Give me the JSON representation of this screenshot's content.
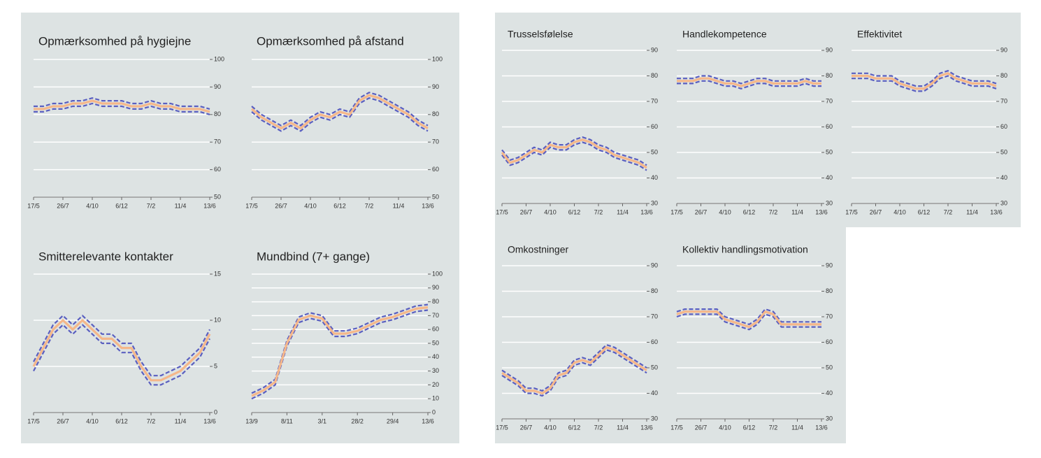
{
  "chart_data": [
    {
      "type": "line",
      "title": "Opmærksomhed på hygiejne",
      "categories": [
        "17/5",
        null,
        null,
        "26/7",
        null,
        null,
        "4/10",
        null,
        null,
        "6/12",
        null,
        null,
        "7/2",
        null,
        null,
        "11/4",
        null,
        null,
        "13/6"
      ],
      "series": [
        {
          "color": "#5a5fc0",
          "dash": true,
          "values": [
            83,
            83,
            84,
            84,
            85,
            85,
            86,
            85,
            85,
            85,
            84,
            84,
            85,
            84,
            84,
            83,
            83,
            83,
            82
          ]
        },
        {
          "color": "#5a5fc0",
          "dash": true,
          "values": [
            81,
            81,
            82,
            82,
            83,
            83,
            84,
            83,
            83,
            83,
            82,
            82,
            83,
            82,
            82,
            81,
            81,
            81,
            80
          ]
        },
        {
          "color": "#f5b78a",
          "values": [
            82,
            82,
            83,
            83,
            84,
            84,
            85,
            84,
            84,
            84,
            83,
            83,
            84,
            83,
            83,
            82,
            82,
            82,
            81
          ]
        }
      ],
      "ylim": [
        50,
        100
      ],
      "yticks": [
        50,
        60,
        70,
        80,
        90,
        100
      ],
      "grid": true
    },
    {
      "type": "line",
      "title": "Opmærksomhed på afstand",
      "categories": [
        "17/5",
        null,
        null,
        "26/7",
        null,
        null,
        "4/10",
        null,
        null,
        "6/12",
        null,
        null,
        "7/2",
        null,
        null,
        "11/4",
        null,
        null,
        "13/6"
      ],
      "series": [
        {
          "color": "#5a5fc0",
          "dash": true,
          "values": [
            83,
            80,
            78,
            76,
            78,
            76,
            79,
            81,
            80,
            82,
            81,
            86,
            88,
            87,
            85,
            83,
            81,
            78,
            76
          ]
        },
        {
          "color": "#5a5fc0",
          "dash": true,
          "values": [
            81,
            78,
            76,
            74,
            76,
            74,
            77,
            79,
            78,
            80,
            79,
            84,
            86,
            85,
            83,
            81,
            79,
            76,
            74
          ]
        },
        {
          "color": "#f5b78a",
          "values": [
            82,
            79,
            77,
            75,
            77,
            75,
            78,
            80,
            79,
            81,
            80,
            85,
            87,
            86,
            84,
            82,
            80,
            77,
            75
          ]
        }
      ],
      "ylim": [
        50,
        100
      ],
      "yticks": [
        50,
        60,
        70,
        80,
        90,
        100
      ],
      "grid": true
    },
    {
      "type": "line",
      "title": "Smitterelevante kontakter",
      "categories": [
        "17/5",
        null,
        null,
        "26/7",
        null,
        null,
        "4/10",
        null,
        null,
        "6/12",
        null,
        null,
        "7/2",
        null,
        null,
        "11/4",
        null,
        null,
        "13/6"
      ],
      "series": [
        {
          "color": "#5a5fc0",
          "dash": true,
          "values": [
            5.5,
            7.5,
            9.5,
            10.5,
            9.5,
            10.5,
            9.5,
            8.5,
            8.5,
            7.5,
            7.5,
            5.5,
            4,
            4,
            4.5,
            5,
            6,
            7,
            9
          ]
        },
        {
          "color": "#5a5fc0",
          "dash": true,
          "values": [
            4.5,
            6.5,
            8.5,
            9.5,
            8.5,
            9.5,
            8.5,
            7.5,
            7.5,
            6.5,
            6.5,
            4.5,
            3,
            3,
            3.5,
            4,
            5,
            6,
            8
          ]
        },
        {
          "color": "#f5b78a",
          "values": [
            5,
            7,
            9,
            10,
            9,
            10,
            9,
            8,
            8,
            7,
            7,
            5,
            3.5,
            3.5,
            4,
            4.5,
            5.5,
            6.5,
            8.5
          ]
        }
      ],
      "ylim": [
        0,
        15
      ],
      "yticks": [
        0,
        5,
        10,
        15
      ],
      "grid": true
    },
    {
      "type": "line",
      "title": "Mundbind (7+ gange)",
      "categories": [
        "13/9",
        null,
        null,
        "8/11",
        null,
        null,
        "3/1",
        null,
        null,
        "28/2",
        null,
        null,
        "29/4",
        null,
        null,
        "13/6"
      ],
      "series": [
        {
          "color": "#5a5fc0",
          "dash": true,
          "values": [
            14,
            18,
            24,
            52,
            69,
            72,
            70,
            59,
            59,
            61,
            65,
            69,
            71,
            74,
            77,
            78
          ]
        },
        {
          "color": "#5a5fc0",
          "dash": true,
          "values": [
            10,
            14,
            20,
            48,
            65,
            68,
            66,
            55,
            55,
            57,
            61,
            65,
            67,
            70,
            73,
            74
          ]
        },
        {
          "color": "#f5b78a",
          "values": [
            12,
            16,
            22,
            50,
            67,
            70,
            68,
            57,
            57,
            59,
            63,
            67,
            69,
            72,
            75,
            76
          ]
        }
      ],
      "ylim": [
        0,
        100
      ],
      "yticks": [
        0,
        10,
        20,
        30,
        40,
        50,
        60,
        70,
        80,
        90,
        100
      ],
      "grid": true
    },
    {
      "type": "line",
      "title": "Trusselsfølelse",
      "categories": [
        "17/5",
        null,
        null,
        "26/7",
        null,
        null,
        "4/10",
        null,
        null,
        "6/12",
        null,
        null,
        "7/2",
        null,
        null,
        "11/4",
        null,
        null,
        "13/6"
      ],
      "series": [
        {
          "color": "#5a5fc0",
          "dash": true,
          "values": [
            51,
            47,
            48,
            50,
            52,
            51,
            54,
            53,
            53,
            55,
            56,
            55,
            53,
            52,
            50,
            49,
            48,
            47,
            45
          ]
        },
        {
          "color": "#5a5fc0",
          "dash": true,
          "values": [
            49,
            45,
            46,
            48,
            50,
            49,
            52,
            51,
            51,
            53,
            54,
            53,
            51,
            50,
            48,
            47,
            46,
            45,
            43
          ]
        },
        {
          "color": "#f5b78a",
          "values": [
            50,
            46,
            47,
            49,
            51,
            50,
            53,
            52,
            52,
            54,
            55,
            54,
            52,
            51,
            49,
            48,
            47,
            46,
            44
          ]
        }
      ],
      "ylim": [
        30,
        90
      ],
      "yticks": [
        30,
        40,
        50,
        60,
        70,
        80,
        90
      ],
      "grid": true
    },
    {
      "type": "line",
      "title": "Handlekompetence",
      "categories": [
        "17/5",
        null,
        null,
        "26/7",
        null,
        null,
        "4/10",
        null,
        null,
        "6/12",
        null,
        null,
        "7/2",
        null,
        null,
        "11/4",
        null,
        null,
        "13/6"
      ],
      "series": [
        {
          "color": "#5a5fc0",
          "dash": true,
          "values": [
            79,
            79,
            79,
            80,
            80,
            79,
            78,
            78,
            77,
            78,
            79,
            79,
            78,
            78,
            78,
            78,
            79,
            78,
            78
          ]
        },
        {
          "color": "#5a5fc0",
          "dash": true,
          "values": [
            77,
            77,
            77,
            78,
            78,
            77,
            76,
            76,
            75,
            76,
            77,
            77,
            76,
            76,
            76,
            76,
            77,
            76,
            76
          ]
        },
        {
          "color": "#f5b78a",
          "values": [
            78,
            78,
            78,
            79,
            79,
            78,
            77,
            77,
            76,
            77,
            78,
            78,
            77,
            77,
            77,
            77,
            78,
            77,
            77
          ]
        }
      ],
      "ylim": [
        30,
        90
      ],
      "yticks": [
        30,
        40,
        50,
        60,
        70,
        80,
        90
      ],
      "grid": true
    },
    {
      "type": "line",
      "title": "Effektivitet",
      "categories": [
        "17/5",
        null,
        null,
        "26/7",
        null,
        null,
        "4/10",
        null,
        null,
        "6/12",
        null,
        null,
        "7/2",
        null,
        null,
        "11/4",
        null,
        null,
        "13/6"
      ],
      "series": [
        {
          "color": "#5a5fc0",
          "dash": true,
          "values": [
            81,
            81,
            81,
            80,
            80,
            80,
            78,
            77,
            76,
            76,
            78,
            81,
            82,
            80,
            79,
            78,
            78,
            78,
            77
          ]
        },
        {
          "color": "#5a5fc0",
          "dash": true,
          "values": [
            79,
            79,
            79,
            78,
            78,
            78,
            76,
            75,
            74,
            74,
            76,
            79,
            80,
            78,
            77,
            76,
            76,
            76,
            75
          ]
        },
        {
          "color": "#f5b78a",
          "values": [
            80,
            80,
            80,
            79,
            79,
            79,
            77,
            76,
            75,
            75,
            77,
            80,
            81,
            79,
            78,
            77,
            77,
            77,
            76
          ]
        }
      ],
      "ylim": [
        30,
        90
      ],
      "yticks": [
        30,
        40,
        50,
        60,
        70,
        80,
        90
      ],
      "grid": true
    },
    {
      "type": "line",
      "title": "Omkostninger",
      "categories": [
        "17/5",
        null,
        null,
        "26/7",
        null,
        null,
        "4/10",
        null,
        null,
        "6/12",
        null,
        null,
        "7/2",
        null,
        null,
        "11/4",
        null,
        null,
        "13/6"
      ],
      "series": [
        {
          "color": "#5a5fc0",
          "dash": true,
          "values": [
            49,
            47,
            45,
            42,
            42,
            41,
            43,
            48,
            49,
            53,
            54,
            53,
            56,
            59,
            58,
            56,
            54,
            52,
            50
          ]
        },
        {
          "color": "#5a5fc0",
          "dash": true,
          "values": [
            47,
            45,
            43,
            40,
            40,
            39,
            41,
            46,
            47,
            51,
            52,
            51,
            54,
            57,
            56,
            54,
            52,
            50,
            48
          ]
        },
        {
          "color": "#f5b78a",
          "values": [
            48,
            46,
            44,
            41,
            41,
            40,
            42,
            47,
            48,
            52,
            53,
            52,
            55,
            58,
            57,
            55,
            53,
            51,
            49
          ]
        }
      ],
      "ylim": [
        30,
        90
      ],
      "yticks": [
        30,
        40,
        50,
        60,
        70,
        80,
        90
      ],
      "grid": true
    },
    {
      "type": "line",
      "title": "Kollektiv handlingsmotivation",
      "categories": [
        "17/5",
        null,
        null,
        "26/7",
        null,
        null,
        "4/10",
        null,
        null,
        "6/12",
        null,
        null,
        "7/2",
        null,
        null,
        "11/4",
        null,
        null,
        "13/6"
      ],
      "series": [
        {
          "color": "#5a5fc0",
          "dash": true,
          "values": [
            72,
            73,
            73,
            73,
            73,
            73,
            70,
            69,
            68,
            67,
            69,
            73,
            72,
            68,
            68,
            68,
            68,
            68,
            68
          ]
        },
        {
          "color": "#5a5fc0",
          "dash": true,
          "values": [
            70,
            71,
            71,
            71,
            71,
            71,
            68,
            67,
            66,
            65,
            67,
            71,
            70,
            66,
            66,
            66,
            66,
            66,
            66
          ]
        },
        {
          "color": "#f5b78a",
          "values": [
            71,
            72,
            72,
            72,
            72,
            72,
            69,
            68,
            67,
            66,
            68,
            72,
            71,
            67,
            67,
            67,
            67,
            67,
            67
          ]
        }
      ],
      "ylim": [
        30,
        90
      ],
      "yticks": [
        30,
        40,
        50,
        60,
        70,
        80,
        90
      ],
      "grid": true
    }
  ]
}
